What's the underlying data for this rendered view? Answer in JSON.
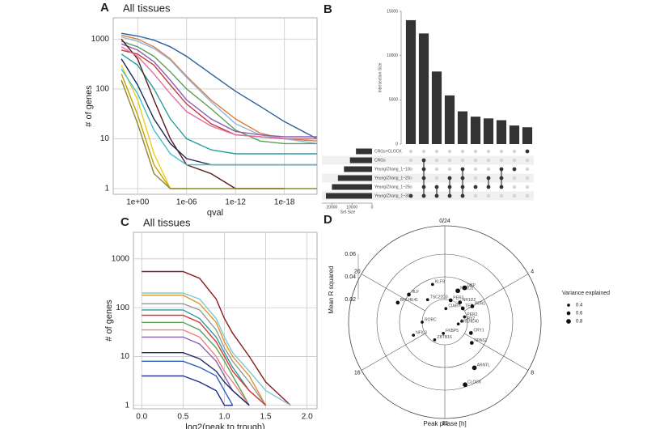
{
  "chart_data": [
    {
      "type": "line",
      "panel": "A",
      "title": "All tissues",
      "x_label": "qval",
      "y_label": "# of genes",
      "xlog": true,
      "ylog": true,
      "grid": true,
      "xlim": [
        1000,
        1e-22
      ],
      "ylim": [
        0.77,
        2670
      ],
      "xticks": [
        {
          "value": 1,
          "label": "1e+00"
        },
        {
          "value": 1e-06,
          "label": "1e-06"
        },
        {
          "value": 1e-12,
          "label": "1e-12"
        },
        {
          "value": 1e-18,
          "label": "1e-18"
        }
      ],
      "yticks": [
        1,
        10,
        100,
        1000
      ],
      "x": [
        100,
        1,
        0.01,
        0.0001,
        1e-06,
        1e-09,
        1e-12,
        1e-15,
        1e-18,
        1e-22
      ],
      "series": [
        {
          "color": "#2c5f9e",
          "values": [
            1300,
            1150,
            950,
            700,
            450,
            200,
            90,
            45,
            22,
            10
          ]
        },
        {
          "color": "#e07b39",
          "values": [
            1200,
            1000,
            700,
            400,
            180,
            60,
            25,
            13,
            10,
            9
          ]
        },
        {
          "color": "#8fb8de",
          "values": [
            1100,
            900,
            650,
            380,
            170,
            55,
            20,
            12,
            10,
            8
          ]
        },
        {
          "color": "#5aa05a",
          "values": [
            900,
            700,
            450,
            220,
            100,
            40,
            15,
            9,
            8,
            8
          ]
        },
        {
          "color": "#c93a3a",
          "values": [
            600,
            500,
            300,
            120,
            50,
            20,
            12,
            11,
            10,
            10
          ]
        },
        {
          "color": "#8a5fb5",
          "values": [
            800,
            600,
            350,
            150,
            60,
            25,
            14,
            12,
            11,
            11
          ]
        },
        {
          "color": "#2a9d9d",
          "values": [
            500,
            300,
            100,
            25,
            10,
            6,
            5,
            5,
            5,
            5
          ]
        },
        {
          "color": "#5a1a1a",
          "values": [
            1000,
            400,
            60,
            10,
            3,
            2,
            1,
            1,
            1,
            null
          ]
        },
        {
          "color": "#e6d020",
          "values": [
            300,
            60,
            5,
            1,
            1,
            null,
            null,
            null,
            null,
            null
          ]
        },
        {
          "color": "#c8a000",
          "values": [
            200,
            30,
            3,
            1,
            null,
            null,
            null,
            null,
            null,
            null
          ]
        },
        {
          "color": "#1a2a5a",
          "values": [
            400,
            120,
            25,
            8,
            4,
            3,
            3,
            3,
            3,
            3
          ]
        },
        {
          "color": "#e06fa0",
          "values": [
            700,
            450,
            200,
            80,
            35,
            18,
            12,
            11,
            10,
            10
          ]
        },
        {
          "color": "#8a8a30",
          "values": [
            150,
            20,
            2,
            1,
            1,
            1,
            1,
            1,
            1,
            1
          ]
        },
        {
          "color": "#40c0d0",
          "values": [
            250,
            80,
            15,
            5,
            3,
            3,
            3,
            3,
            3,
            3
          ]
        }
      ]
    },
    {
      "type": "upset",
      "panel": "B",
      "y_label": "Intersection Size",
      "x_label": "Set Size",
      "values": [
        14000,
        12500,
        8200,
        5500,
        3700,
        3100,
        2900,
        2700,
        2100,
        1900
      ],
      "ylim": [
        0,
        15000
      ],
      "yticks": [
        0,
        5000,
        10000,
        15000
      ],
      "sets": [
        "CRGs+CLOCK",
        "CRGs",
        "Yeung/Zhang_1~10",
        "Yeung/Zhang_1~20",
        "Yeung/Zhang_1~25",
        "Yeung/Zhang_1~30"
      ],
      "set_sizes": [
        8000,
        11000,
        14000,
        17000,
        20000,
        23000
      ],
      "xlim": [
        25000,
        0
      ],
      "xticks": [
        20000,
        10000,
        0
      ],
      "membership": [
        [
          5
        ],
        [
          1,
          2,
          3,
          4,
          5
        ],
        [
          4,
          5
        ],
        [
          3,
          4,
          5
        ],
        [
          2,
          3,
          4,
          5
        ],
        [
          4
        ],
        [
          3,
          4
        ],
        [
          2,
          3,
          4
        ],
        [
          2
        ],
        [
          0
        ]
      ],
      "color": "#333333"
    },
    {
      "type": "line",
      "panel": "C",
      "title": "All tissues",
      "x_label": "log2(peak to trough)",
      "y_label": "# of genes",
      "xlog": false,
      "ylog": true,
      "grid": true,
      "xlim": [
        -0.1,
        2.12
      ],
      "ylim": [
        0.85,
        3500
      ],
      "xticks": [
        {
          "value": 0,
          "label": "0.0"
        },
        {
          "value": 0.5,
          "label": "0.5"
        },
        {
          "value": 1,
          "label": "1.0"
        },
        {
          "value": 1.5,
          "label": "1.5"
        },
        {
          "value": 2,
          "label": "2.0"
        }
      ],
      "yticks": [
        1,
        10,
        100,
        1000
      ],
      "x": [
        0,
        0.5,
        0.7,
        0.9,
        1.0,
        1.1,
        1.3,
        1.5,
        1.8
      ],
      "series": [
        {
          "color": "#8b1a1a",
          "values": [
            550,
            550,
            400,
            150,
            60,
            30,
            10,
            3,
            1
          ]
        },
        {
          "color": "#7fc8d8",
          "values": [
            200,
            200,
            150,
            60,
            25,
            12,
            5,
            2,
            1
          ]
        },
        {
          "color": "#e0952a",
          "values": [
            180,
            180,
            120,
            50,
            20,
            10,
            4,
            1,
            null
          ]
        },
        {
          "color": "#999999",
          "values": [
            120,
            120,
            90,
            35,
            15,
            8,
            3,
            1,
            null
          ]
        },
        {
          "color": "#2a9d9d",
          "values": [
            90,
            90,
            60,
            25,
            12,
            6,
            2,
            1,
            null
          ]
        },
        {
          "color": "#d83838",
          "values": [
            70,
            70,
            50,
            20,
            10,
            5,
            2,
            1,
            null
          ]
        },
        {
          "color": "#5aa05a",
          "values": [
            50,
            50,
            35,
            15,
            8,
            4,
            1,
            null,
            null
          ]
        },
        {
          "color": "#f08080",
          "values": [
            35,
            35,
            25,
            10,
            5,
            3,
            1,
            null,
            null
          ]
        },
        {
          "color": "#8a5fb5",
          "values": [
            25,
            25,
            18,
            8,
            4,
            2,
            1,
            null,
            null
          ]
        },
        {
          "color": "#1a2a6a",
          "values": [
            12,
            12,
            9,
            5,
            3,
            2,
            1,
            null,
            null
          ]
        },
        {
          "color": "#3060c0",
          "values": [
            8,
            8,
            6,
            4,
            2,
            1,
            null,
            null,
            null
          ]
        },
        {
          "color": "#1a2a8a",
          "values": [
            4,
            4,
            3,
            2,
            1,
            1,
            null,
            null,
            null
          ]
        }
      ]
    },
    {
      "type": "polar-scatter",
      "panel": "D",
      "x_label": "Peak phase [h]",
      "y_label": "Mean R squared",
      "legend_title": "Variance explained",
      "legend_values": [
        0.4,
        0.6,
        0.8
      ],
      "phase_lim": [
        0,
        24
      ],
      "rlim": [
        0,
        0.085
      ],
      "rticks": [
        0.02,
        0.04,
        0.06
      ],
      "angular_ticks": [
        {
          "value": 0,
          "label": "0/24"
        },
        4,
        8,
        12,
        16,
        20
      ],
      "labels": [
        "ARNTL",
        "CLOCK",
        "NPAS2",
        "CRY1",
        "NR1D1",
        "NR1D2",
        "DBP",
        "TEF",
        "PER1",
        "PER3",
        "PER2",
        "CRY2",
        "BHLHE40",
        "BHLHE41",
        "HLF",
        "NFIL3",
        "CIART",
        "TSC22D3",
        "RORC",
        "ZBTB16",
        "KLF9",
        "FKBP5"
      ],
      "phase": [
        9.8,
        10.8,
        8.5,
        7.5,
        1.5,
        2.5,
        2.0,
        3.5,
        4.0,
        1.0,
        5.0,
        5.8,
        6.5,
        19.5,
        20.5,
        16.5,
        0.3,
        21.5,
        18.0,
        14.0,
        22.8,
        12.5
      ],
      "r": [
        0.048,
        0.058,
        0.03,
        0.025,
        0.03,
        0.022,
        0.035,
        0.02,
        0.028,
        0.02,
        0.018,
        0.015,
        0.012,
        0.045,
        0.04,
        0.03,
        0.012,
        0.025,
        0.02,
        0.018,
        0.035,
        0.01
      ],
      "variance": [
        0.8,
        0.8,
        0.6,
        0.6,
        0.8,
        0.6,
        0.8,
        0.6,
        0.6,
        0.6,
        0.4,
        0.4,
        0.4,
        0.6,
        0.6,
        0.4,
        0.4,
        0.4,
        0.4,
        0.4,
        0.4,
        0.4
      ],
      "color": "#111111"
    }
  ]
}
